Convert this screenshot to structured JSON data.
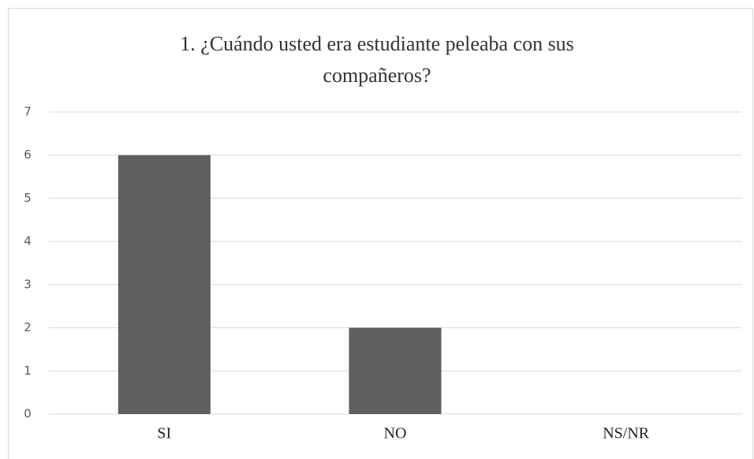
{
  "chart_data": {
    "type": "bar",
    "title": "1. ¿Cuándo usted era estudiante peleaba con sus compañeros?",
    "categories": [
      "SI",
      "NO",
      "NS/NR"
    ],
    "values": [
      6,
      2,
      0
    ],
    "color": "#5f5f5f",
    "ylim": [
      0,
      7
    ],
    "yticks": [
      0,
      1,
      2,
      3,
      4,
      5,
      6,
      7
    ],
    "grid": true
  }
}
